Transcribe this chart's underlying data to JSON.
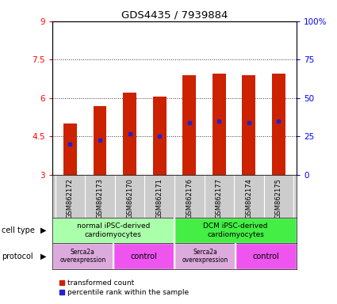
{
  "title": "GDS4435 / 7939884",
  "samples": [
    "GSM862172",
    "GSM862173",
    "GSM862170",
    "GSM862171",
    "GSM862176",
    "GSM862177",
    "GSM862174",
    "GSM862175"
  ],
  "bar_tops": [
    5.0,
    5.7,
    6.2,
    6.05,
    6.9,
    6.95,
    6.9,
    6.95
  ],
  "bar_bottoms": [
    3.0,
    3.0,
    3.0,
    3.0,
    3.0,
    3.0,
    3.0,
    3.0
  ],
  "blue_marks": [
    4.2,
    4.35,
    4.6,
    4.5,
    5.05,
    5.1,
    5.05,
    5.1
  ],
  "ylim_left": [
    3,
    9
  ],
  "ylim_right": [
    0,
    100
  ],
  "yticks_left": [
    3,
    4.5,
    6,
    7.5,
    9
  ],
  "yticks_right": [
    0,
    25,
    50,
    75,
    100
  ],
  "ytick_labels_left": [
    "3",
    "4.5",
    "6",
    "7.5",
    "9"
  ],
  "ytick_labels_right": [
    "0",
    "25",
    "50",
    "75",
    "100%"
  ],
  "bar_color": "#cc2200",
  "blue_color": "#2222cc",
  "cell_type_groups": [
    {
      "label": "normal iPSC-derived\ncardiomyocytes",
      "start": 0,
      "end": 3,
      "color": "#aaffaa"
    },
    {
      "label": "DCM iPSC-derived\ncardiomyocytes",
      "start": 4,
      "end": 7,
      "color": "#44ee44"
    }
  ],
  "protocol_groups": [
    {
      "label": "Serca2a\noverexpression",
      "start": 0,
      "end": 1,
      "color": "#ddaadd"
    },
    {
      "label": "control",
      "start": 2,
      "end": 3,
      "color": "#ee55ee"
    },
    {
      "label": "Serca2a\noverexpression",
      "start": 4,
      "end": 5,
      "color": "#ddaadd"
    },
    {
      "label": "control",
      "start": 6,
      "end": 7,
      "color": "#ee55ee"
    }
  ],
  "cell_type_label": "cell type",
  "protocol_label": "protocol",
  "legend_red_label": "transformed count",
  "legend_blue_label": "percentile rank within the sample",
  "bar_width": 0.45,
  "tick_area_bg": "#cccccc"
}
